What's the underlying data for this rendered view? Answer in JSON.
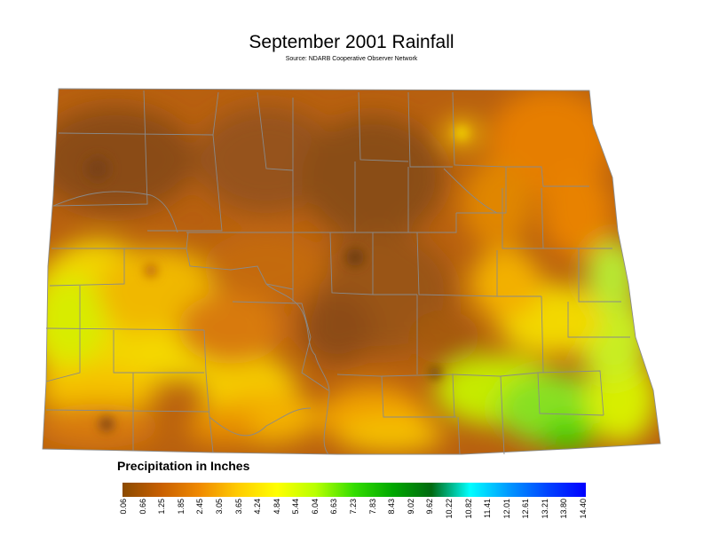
{
  "title": "September 2001 Rainfall",
  "source": "Source: NDARB Cooperative Observer Network",
  "legend": {
    "title": "Precipitation in Inches",
    "ticks": [
      "0.06",
      "0.66",
      "1.25",
      "1.85",
      "2.45",
      "3.05",
      "3.65",
      "4.24",
      "4.84",
      "5.44",
      "6.04",
      "6.63",
      "7.23",
      "7.83",
      "8.43",
      "9.02",
      "9.62",
      "10.22",
      "10.82",
      "11.41",
      "12.01",
      "12.61",
      "13.21",
      "13.80",
      "14.40"
    ],
    "colors": [
      "#8b4a00",
      "#c85f00",
      "#f08a00",
      "#ffcc00",
      "#ffff00",
      "#b8ff00",
      "#33dd00",
      "#00a800",
      "#006a10",
      "#00ffff",
      "#0099ff",
      "#0044ff",
      "#0000ff"
    ]
  },
  "map_colors": {
    "dark_brown": "#8a4d12",
    "brown": "#b05e10",
    "orange": "#e07a0a",
    "light_orange": "#f5a000",
    "yellow": "#f6e000",
    "light_green": "#c8f000",
    "green": "#7fe020",
    "county_line": "#8a8a8a"
  }
}
